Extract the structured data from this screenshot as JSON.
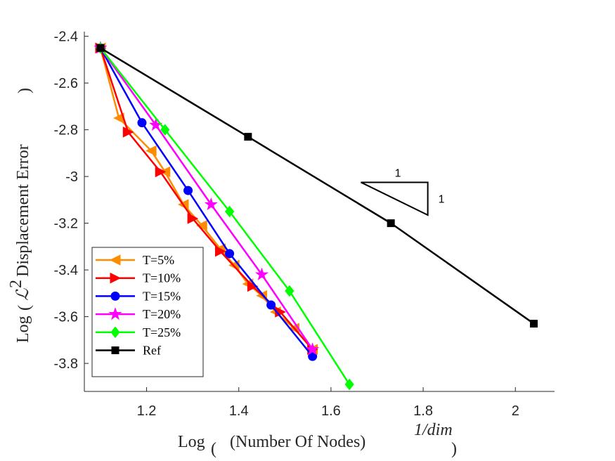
{
  "chart_data": {
    "type": "line",
    "title": "",
    "xlabel": "Log ((Number Of Nodes)^{1/dim})",
    "xlabel_parts": {
      "prefix": "Log",
      "main": "(Number Of Nodes)",
      "exponent": "1/dim"
    },
    "ylabel": "Log (ℒ² Displacement Error)",
    "ylabel_parts": {
      "prefix": "Log",
      "script": "ℒ",
      "sup": "2",
      "rest": "Displacement Error"
    },
    "xlim": [
      1.065,
      2.085
    ],
    "ylim": [
      -3.92,
      -2.38
    ],
    "xticks": [
      1.2,
      1.4,
      1.6,
      1.8,
      2.0
    ],
    "xtick_labels": [
      "1.2",
      "1.4",
      "1.6",
      "1.8",
      "2"
    ],
    "yticks": [
      -3.8,
      -3.6,
      -3.4,
      -3.2,
      -3.0,
      -2.8,
      -2.6,
      -2.4
    ],
    "ytick_labels": [
      "-3.8",
      "-3.6",
      "-3.4",
      "-3.2",
      "-3",
      "-2.8",
      "-2.6",
      "-2.4"
    ],
    "grid": false,
    "legend_position": "bottom-left",
    "series": [
      {
        "name": "T=5%",
        "color": "#ff8c00",
        "marker": "triangle-left",
        "x": [
          1.1,
          1.14,
          1.21,
          1.24,
          1.28,
          1.32,
          1.36,
          1.39,
          1.42,
          1.45,
          1.48,
          1.52,
          1.56
        ],
        "y": [
          -2.45,
          -2.75,
          -2.89,
          -2.98,
          -3.12,
          -3.21,
          -3.31,
          -3.38,
          -3.46,
          -3.51,
          -3.58,
          -3.65,
          -3.74
        ]
      },
      {
        "name": "T=10%",
        "color": "#ff0000",
        "marker": "triangle-right",
        "x": [
          1.1,
          1.16,
          1.23,
          1.3,
          1.36,
          1.43,
          1.49,
          1.56
        ],
        "y": [
          -2.45,
          -2.81,
          -2.98,
          -3.18,
          -3.32,
          -3.47,
          -3.58,
          -3.74
        ]
      },
      {
        "name": "T=15%",
        "color": "#0000ff",
        "marker": "circle",
        "x": [
          1.1,
          1.19,
          1.29,
          1.38,
          1.47,
          1.56
        ],
        "y": [
          -2.45,
          -2.77,
          -3.06,
          -3.33,
          -3.55,
          -3.77
        ]
      },
      {
        "name": "T=20%",
        "color": "#ff00ff",
        "marker": "star",
        "x": [
          1.1,
          1.22,
          1.34,
          1.45,
          1.56
        ],
        "y": [
          -2.45,
          -2.78,
          -3.12,
          -3.42,
          -3.74
        ]
      },
      {
        "name": "T=25%",
        "color": "#00ff00",
        "marker": "diamond",
        "x": [
          1.1,
          1.24,
          1.38,
          1.51,
          1.64
        ],
        "y": [
          -2.45,
          -2.8,
          -3.15,
          -3.49,
          -3.89
        ]
      },
      {
        "name": "Ref",
        "color": "#000000",
        "marker": "square",
        "x": [
          1.1,
          1.42,
          1.73,
          2.04
        ],
        "y": [
          -2.45,
          -2.83,
          -3.2,
          -3.63
        ]
      }
    ],
    "slope_triangle": {
      "x0": 1.665,
      "x1": 1.81,
      "y0": -3.025,
      "y1": -3.165,
      "run_label": "1",
      "rise_label": "1"
    }
  }
}
